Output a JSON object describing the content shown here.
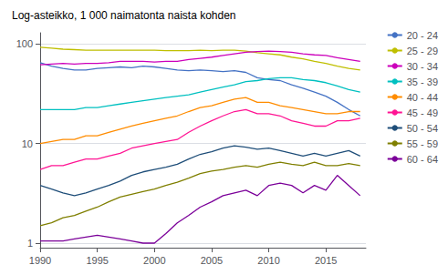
{
  "chart_data": {
    "type": "line",
    "title": "Log-asteikko, 1 000 naimatonta naista kohden",
    "x": [
      1990,
      1991,
      1992,
      1993,
      1994,
      1995,
      1996,
      1997,
      1998,
      1999,
      2000,
      2001,
      2002,
      2003,
      2004,
      2005,
      2006,
      2007,
      2008,
      2009,
      2010,
      2011,
      2012,
      2013,
      2014,
      2015,
      2016,
      2017,
      2018
    ],
    "series": [
      {
        "name": "20 - 24",
        "color": "#4472C4",
        "values": [
          65,
          60,
          57,
          55,
          55,
          57,
          58,
          59,
          58,
          60,
          59,
          57,
          55,
          54,
          55,
          54,
          53,
          54,
          52,
          46,
          44,
          43,
          39,
          36,
          33,
          30,
          26,
          22,
          19
        ]
      },
      {
        "name": "25 - 29",
        "color": "#BFBF00",
        "values": [
          93,
          91,
          89,
          88,
          87,
          87,
          87,
          87,
          87,
          87,
          87,
          86,
          86,
          86,
          87,
          86,
          87,
          87,
          85,
          82,
          80,
          78,
          74,
          71,
          67,
          64,
          60,
          57,
          55
        ]
      },
      {
        "name": "30 - 34",
        "color": "#CC00BB",
        "values": [
          62,
          63,
          64,
          63,
          64,
          64,
          65,
          67,
          67,
          67,
          66,
          67,
          67,
          70,
          72,
          74,
          77,
          80,
          83,
          84,
          85,
          84,
          83,
          80,
          78,
          77,
          73,
          70,
          67
        ]
      },
      {
        "name": "35 - 39",
        "color": "#00C0C0",
        "values": [
          22,
          22,
          22,
          22,
          23,
          23,
          24,
          25,
          26,
          27,
          28,
          29,
          30,
          31,
          33,
          35,
          37,
          39,
          42,
          43,
          45,
          46,
          46,
          44,
          43,
          41,
          38,
          35,
          33
        ]
      },
      {
        "name": "40 - 44",
        "color": "#FF8C00",
        "values": [
          10,
          10.5,
          11,
          11,
          12,
          12,
          13,
          14,
          15,
          16,
          17,
          18,
          19,
          21,
          23,
          24,
          26,
          28,
          29,
          26,
          26,
          24,
          23,
          22,
          21,
          20,
          20,
          21,
          21
        ]
      },
      {
        "name": "45 - 49",
        "color": "#FF1493",
        "values": [
          5.5,
          6,
          6,
          6.5,
          7,
          7,
          7.5,
          8,
          9,
          9.5,
          10,
          10.5,
          11,
          13,
          15,
          17,
          19,
          21,
          22,
          20,
          20,
          19,
          17,
          16,
          15,
          15,
          17,
          17,
          18
        ]
      },
      {
        "name": "50 - 54",
        "color": "#1F4E79",
        "values": [
          3.8,
          3.5,
          3.2,
          3.0,
          3.2,
          3.5,
          3.8,
          4.2,
          4.8,
          5.2,
          5.5,
          5.8,
          6.2,
          7,
          7.8,
          8.3,
          9,
          9.5,
          9.2,
          8.8,
          9.0,
          8.5,
          8,
          7.5,
          8,
          7.5,
          8,
          8.5,
          7.5
        ]
      },
      {
        "name": "55 - 59",
        "color": "#7F7F00",
        "values": [
          1.5,
          1.6,
          1.8,
          1.9,
          2.1,
          2.3,
          2.6,
          2.9,
          3.1,
          3.3,
          3.5,
          3.8,
          4.1,
          4.5,
          5.0,
          5.3,
          5.5,
          5.8,
          6.0,
          5.8,
          6.2,
          6.5,
          6.2,
          6.0,
          6.5,
          6.0,
          6.0,
          6.3,
          6.0
        ]
      },
      {
        "name": "60 - 64",
        "color": "#7B0099",
        "values": [
          1.05,
          1.05,
          1.05,
          1.1,
          1.15,
          1.2,
          1.15,
          1.1,
          1.05,
          1.0,
          1.0,
          1.25,
          1.6,
          1.9,
          2.3,
          2.6,
          3.0,
          3.2,
          3.4,
          3.0,
          3.8,
          4.0,
          3.8,
          3.2,
          3.8,
          3.4,
          4.8,
          3.8,
          3.0
        ]
      }
    ],
    "ylim": [
      0.9,
      130
    ],
    "yticks": [
      1,
      10,
      100
    ],
    "xlim": [
      1990,
      2018.5
    ],
    "xticks": [
      1990,
      1995,
      2000,
      2005,
      2010,
      2015
    ],
    "log": "y",
    "grid": true,
    "legend": "right"
  }
}
